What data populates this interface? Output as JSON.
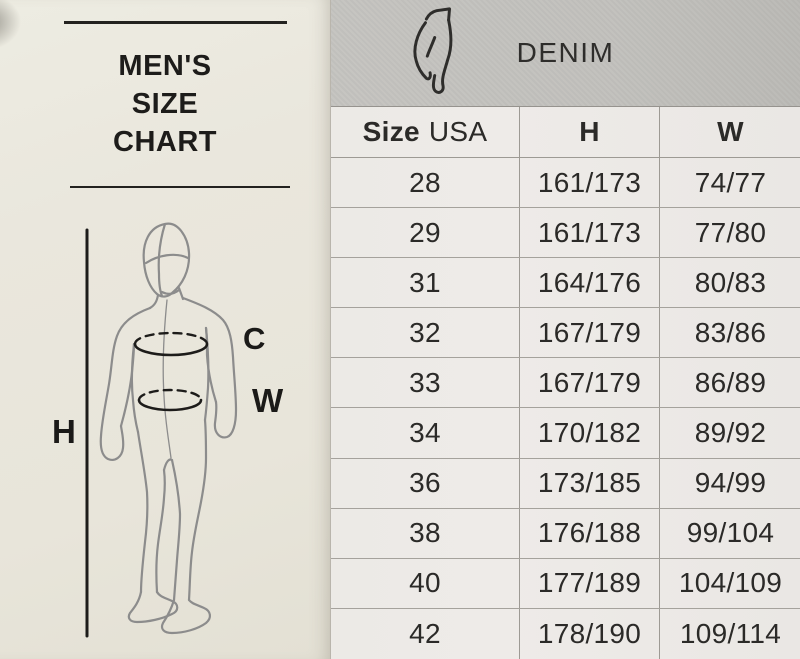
{
  "left_panel": {
    "title_lines": [
      "MEN'S",
      "SIZE",
      "CHART"
    ],
    "figure_labels": {
      "height": "H",
      "chest": "C",
      "waist": "W"
    },
    "figure": "male-body-outline-sketch-with-chest-and-waist-measure-ellipses"
  },
  "right_panel": {
    "category_header": "DENIM",
    "category_icon": "jeans-icon",
    "table": {
      "columns": {
        "size_label": "Size",
        "size_region": "USA",
        "height": "H",
        "waist": "W"
      },
      "rows": [
        [
          "28",
          "161/173",
          "74/77"
        ],
        [
          "29",
          "161/173",
          "77/80"
        ],
        [
          "31",
          "164/176",
          "80/83"
        ],
        [
          "32",
          "167/179",
          "83/86"
        ],
        [
          "33",
          "167/179",
          "86/89"
        ],
        [
          "34",
          "170/182",
          "89/92"
        ],
        [
          "36",
          "173/185",
          "94/99"
        ],
        [
          "38",
          "176/188",
          "99/104"
        ],
        [
          "40",
          "177/189",
          "104/109"
        ],
        [
          "42",
          "178/190",
          "109/114"
        ]
      ]
    }
  },
  "colors": {
    "left_background": "#e9e6dc",
    "table_background": "#edeae7",
    "header_band": "#c3c2be",
    "grid_line": "#9d9a94",
    "ink": "#262626",
    "sketch_line": "#8c8c8c"
  }
}
